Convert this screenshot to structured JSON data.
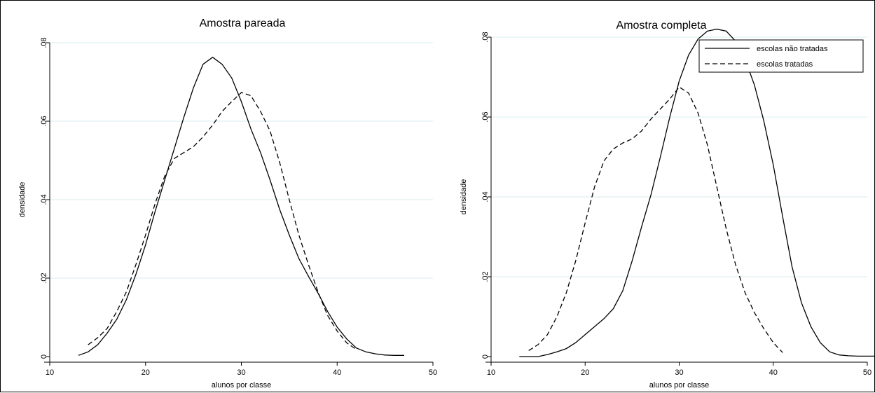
{
  "chart_data": [
    {
      "type": "line",
      "title": "Amostra pareada",
      "xlabel": "alunos por classe",
      "ylabel": "densidade",
      "xlim": [
        10,
        50
      ],
      "ylim": [
        0,
        0.08
      ],
      "x_ticks": [
        "10",
        "20",
        "30",
        "40",
        "50"
      ],
      "y_ticks": [
        "0",
        ".02",
        ".04",
        ".06",
        ".08"
      ],
      "grid": true,
      "series": [
        {
          "name": "escolas não tratadas",
          "style": "solid",
          "points": [
            [
              13,
              0.0003
            ],
            [
              14,
              0.0012
            ],
            [
              15,
              0.003
            ],
            [
              16,
              0.006
            ],
            [
              17,
              0.0095
            ],
            [
              18,
              0.0145
            ],
            [
              19,
              0.021
            ],
            [
              20,
              0.0285
            ],
            [
              21,
              0.037
            ],
            [
              22,
              0.045
            ],
            [
              23,
              0.053
            ],
            [
              24,
              0.061
            ],
            [
              25,
              0.0685
            ],
            [
              26,
              0.0745
            ],
            [
              27,
              0.0763
            ],
            [
              28,
              0.0745
            ],
            [
              29,
              0.071
            ],
            [
              30,
              0.065
            ],
            [
              31,
              0.058
            ],
            [
              32,
              0.052
            ],
            [
              33,
              0.045
            ],
            [
              34,
              0.0375
            ],
            [
              35,
              0.031
            ],
            [
              36,
              0.025
            ],
            [
              37,
              0.0205
            ],
            [
              38,
              0.0162
            ],
            [
              39,
              0.0115
            ],
            [
              40,
              0.0075
            ],
            [
              41,
              0.0045
            ],
            [
              42,
              0.0022
            ],
            [
              43,
              0.0012
            ],
            [
              44,
              0.0007
            ],
            [
              45,
              0.0004
            ],
            [
              46,
              0.0003
            ],
            [
              47,
              0.0003
            ]
          ]
        },
        {
          "name": "escolas tratadas",
          "style": "dashed",
          "points": [
            [
              14,
              0.003
            ],
            [
              15,
              0.0048
            ],
            [
              16,
              0.0072
            ],
            [
              17,
              0.0115
            ],
            [
              18,
              0.0165
            ],
            [
              19,
              0.0235
            ],
            [
              20,
              0.031
            ],
            [
              21,
              0.039
            ],
            [
              22,
              0.046
            ],
            [
              23,
              0.0505
            ],
            [
              24,
              0.052
            ],
            [
              25,
              0.0535
            ],
            [
              26,
              0.056
            ],
            [
              27,
              0.059
            ],
            [
              28,
              0.0625
            ],
            [
              29,
              0.065
            ],
            [
              30,
              0.0673
            ],
            [
              31,
              0.0665
            ],
            [
              32,
              0.0625
            ],
            [
              33,
              0.0575
            ],
            [
              34,
              0.0495
            ],
            [
              35,
              0.04
            ],
            [
              36,
              0.031
            ],
            [
              37,
              0.0235
            ],
            [
              38,
              0.0165
            ],
            [
              39,
              0.0105
            ],
            [
              40,
              0.0065
            ],
            [
              41,
              0.0035
            ],
            [
              42,
              0.0018
            ]
          ]
        }
      ]
    },
    {
      "type": "line",
      "title": "Amostra completa",
      "xlabel": "alunos por classe",
      "ylabel": "densidade",
      "xlim": [
        10,
        50
      ],
      "ylim": [
        0,
        0.08
      ],
      "x_ticks": [
        "10",
        "20",
        "30",
        "40",
        "50"
      ],
      "y_ticks": [
        "0",
        ".02",
        ".04",
        ".06",
        ".08"
      ],
      "grid": true,
      "legend_position": "top-right",
      "series": [
        {
          "name": "escolas não tratadas",
          "style": "solid",
          "points": [
            [
              13,
              0
            ],
            [
              14,
              0
            ],
            [
              15,
              0
            ],
            [
              16,
              0.0005
            ],
            [
              17,
              0.0012
            ],
            [
              18,
              0.002
            ],
            [
              19,
              0.0035
            ],
            [
              20,
              0.0055
            ],
            [
              21,
              0.0075
            ],
            [
              22,
              0.0095
            ],
            [
              23,
              0.012
            ],
            [
              24,
              0.0165
            ],
            [
              25,
              0.024
            ],
            [
              26,
              0.0325
            ],
            [
              27,
              0.0405
            ],
            [
              28,
              0.05
            ],
            [
              29,
              0.06
            ],
            [
              30,
              0.069
            ],
            [
              31,
              0.0755
            ],
            [
              32,
              0.0795
            ],
            [
              33,
              0.0815
            ],
            [
              34,
              0.082
            ],
            [
              35,
              0.0815
            ],
            [
              36,
              0.079
            ],
            [
              37,
              0.0745
            ],
            [
              38,
              0.068
            ],
            [
              39,
              0.059
            ],
            [
              40,
              0.048
            ],
            [
              41,
              0.035
            ],
            [
              42,
              0.0225
            ],
            [
              43,
              0.0135
            ],
            [
              44,
              0.0075
            ],
            [
              45,
              0.0035
            ],
            [
              46,
              0.0012
            ],
            [
              47,
              0.0004
            ],
            [
              48,
              0.0002
            ],
            [
              49,
              0.0001
            ],
            [
              50,
              0.0001
            ],
            [
              51,
              0.0001
            ]
          ]
        },
        {
          "name": "escolas tratadas",
          "style": "dashed",
          "points": [
            [
              14,
              0.0015
            ],
            [
              15,
              0.003
            ],
            [
              16,
              0.0055
            ],
            [
              17,
              0.01
            ],
            [
              18,
              0.016
            ],
            [
              19,
              0.024
            ],
            [
              20,
              0.0335
            ],
            [
              21,
              0.0425
            ],
            [
              22,
              0.049
            ],
            [
              23,
              0.052
            ],
            [
              24,
              0.0535
            ],
            [
              25,
              0.0545
            ],
            [
              26,
              0.0565
            ],
            [
              27,
              0.0595
            ],
            [
              28,
              0.062
            ],
            [
              29,
              0.0645
            ],
            [
              30,
              0.0675
            ],
            [
              31,
              0.066
            ],
            [
              32,
              0.061
            ],
            [
              33,
              0.053
            ],
            [
              34,
              0.0425
            ],
            [
              35,
              0.032
            ],
            [
              36,
              0.023
            ],
            [
              37,
              0.016
            ],
            [
              38,
              0.011
            ],
            [
              39,
              0.007
            ],
            [
              40,
              0.0035
            ],
            [
              41,
              0.001
            ]
          ]
        }
      ]
    }
  ]
}
